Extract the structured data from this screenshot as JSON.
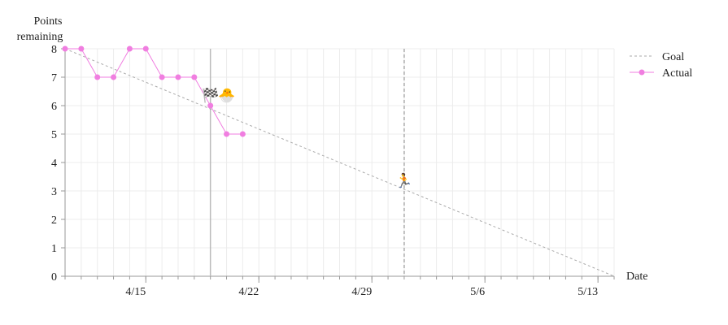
{
  "chart_data": {
    "type": "line",
    "ylabel_lines": [
      "Points",
      "remaining"
    ],
    "xlabel": "Date",
    "ylim": [
      0,
      8
    ],
    "yticks": [
      0,
      1,
      2,
      3,
      4,
      5,
      6,
      7,
      8
    ],
    "xlim": [
      "2019-04-10",
      "2019-05-14"
    ],
    "xticks": [
      {
        "date": "2019-04-15",
        "label": "4/15"
      },
      {
        "date": "2019-04-22",
        "label": "4/22"
      },
      {
        "date": "2019-04-29",
        "label": "4/29"
      },
      {
        "date": "2019-05-06",
        "label": "5/6"
      },
      {
        "date": "2019-05-13",
        "label": "5/13"
      }
    ],
    "grid": true,
    "legend_position": "top-right",
    "series": [
      {
        "name": "Goal",
        "style": "dashed",
        "color": "#aaaaaa",
        "points": [
          {
            "x": "2019-04-10",
            "y": 8
          },
          {
            "x": "2019-05-14",
            "y": 0
          }
        ]
      },
      {
        "name": "Actual",
        "style": "solid",
        "color": "#f07ee0",
        "points": [
          {
            "x": "2019-04-10",
            "y": 8
          },
          {
            "x": "2019-04-11",
            "y": 8
          },
          {
            "x": "2019-04-12",
            "y": 7
          },
          {
            "x": "2019-04-13",
            "y": 7
          },
          {
            "x": "2019-04-14",
            "y": 8
          },
          {
            "x": "2019-04-15",
            "y": 8
          },
          {
            "x": "2019-04-16",
            "y": 7
          },
          {
            "x": "2019-04-17",
            "y": 7
          },
          {
            "x": "2019-04-18",
            "y": 7
          },
          {
            "x": "2019-04-19",
            "y": 6
          },
          {
            "x": "2019-04-20",
            "y": 5
          },
          {
            "x": "2019-04-21",
            "y": 5
          }
        ]
      }
    ],
    "markers": [
      {
        "name": "today-line",
        "x": "2019-04-19",
        "style": "solid",
        "color": "#bbbbbb"
      },
      {
        "name": "projection-line",
        "x": "2019-05-01",
        "style": "dashed",
        "color": "#aaaaaa"
      }
    ],
    "annotations": [
      {
        "name": "finish-flag-icon",
        "glyph": "🏁",
        "x": "2019-04-19",
        "y": 6.2
      },
      {
        "name": "hatching-chick-icon",
        "glyph": "🐣",
        "x": "2019-04-20",
        "y": 6.2
      },
      {
        "name": "runner-icon",
        "glyph": "🏃",
        "x": "2019-05-01",
        "y": 3.2
      }
    ]
  }
}
